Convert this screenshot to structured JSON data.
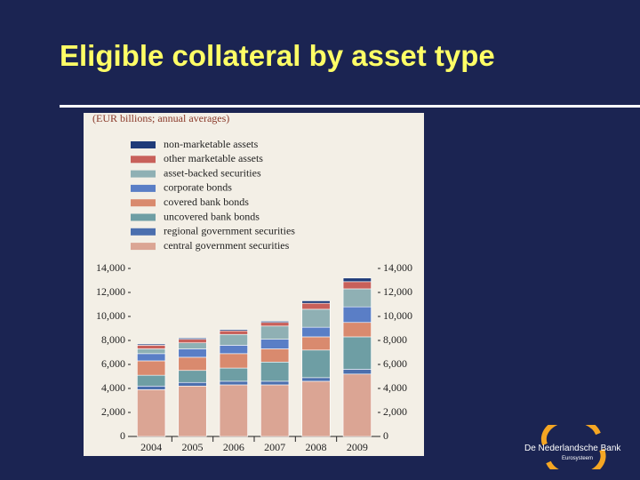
{
  "chart_data": {
    "type": "bar",
    "stacked": true,
    "title": "Eligible collateral by asset type",
    "subtitle": "(EUR billions; annual averages)",
    "categories": [
      "2004",
      "2005",
      "2006",
      "2007",
      "2008",
      "2009"
    ],
    "series": [
      {
        "name": "central government securities",
        "color": "#dba594",
        "values": [
          3900,
          4200,
          4300,
          4300,
          4600,
          5200
        ]
      },
      {
        "name": "regional government securities",
        "color": "#4b6fae",
        "values": [
          300,
          300,
          300,
          300,
          300,
          400
        ]
      },
      {
        "name": "uncovered bank bonds",
        "color": "#6e9ea4",
        "values": [
          900,
          1000,
          1100,
          1600,
          2300,
          2700
        ]
      },
      {
        "name": "covered bank bonds",
        "color": "#d98a6e",
        "values": [
          1200,
          1100,
          1200,
          1100,
          1100,
          1200
        ]
      },
      {
        "name": "corporate bonds",
        "color": "#5a7ec6",
        "values": [
          600,
          700,
          700,
          800,
          800,
          1300
        ]
      },
      {
        "name": "asset-backed securities",
        "color": "#8fb0b4",
        "values": [
          400,
          500,
          900,
          1100,
          1500,
          1500
        ]
      },
      {
        "name": "other marketable assets",
        "color": "#c8605a",
        "values": [
          300,
          300,
          300,
          300,
          500,
          600
        ]
      },
      {
        "name": "non-marketable assets",
        "color": "#1f3b78",
        "values": [
          100,
          100,
          100,
          100,
          200,
          300
        ]
      }
    ],
    "ylim": [
      0,
      14000
    ],
    "yticks": [
      0,
      {
        "value": 2000,
        "label": "2,000"
      },
      {
        "value": 4000,
        "label": "4,000"
      },
      {
        "value": 6000,
        "label": "6,000"
      },
      {
        "value": 8000,
        "label": "8,000"
      },
      {
        "value": 10000,
        "label": "10,000"
      },
      {
        "value": 12000,
        "label": "12,000"
      },
      {
        "value": 14000,
        "label": "14,000"
      }
    ],
    "grid": false
  },
  "logo": {
    "name": "De Nederlandsche Bank",
    "tagline": "Eurosysteem"
  }
}
